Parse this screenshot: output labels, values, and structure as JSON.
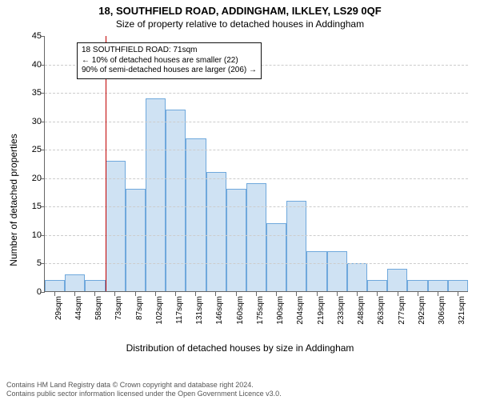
{
  "title_main": "18, SOUTHFIELD ROAD, ADDINGHAM, ILKLEY, LS29 0QF",
  "title_sub": "Size of property relative to detached houses in Addingham",
  "ylabel": "Number of detached properties",
  "xlabel": "Distribution of detached houses by size in Addingham",
  "copyright_line1": "Contains HM Land Registry data © Crown copyright and database right 2024.",
  "copyright_line2": "Contains public sector information licensed under the Open Government Licence v3.0.",
  "chart": {
    "type": "bar",
    "ylim": [
      0,
      45
    ],
    "ytick_step": 5,
    "bar_fill": "#cfe2f3",
    "bar_stroke": "#6fa8dc",
    "grid_color": "#cccccc",
    "axis_color": "#666666",
    "background_color": "#ffffff",
    "categories": [
      "29sqm",
      "44sqm",
      "58sqm",
      "73sqm",
      "87sqm",
      "102sqm",
      "117sqm",
      "131sqm",
      "146sqm",
      "160sqm",
      "175sqm",
      "190sqm",
      "204sqm",
      "219sqm",
      "233sqm",
      "248sqm",
      "263sqm",
      "277sqm",
      "292sqm",
      "306sqm",
      "321sqm"
    ],
    "values": [
      2,
      3,
      2,
      23,
      18,
      34,
      32,
      27,
      21,
      18,
      19,
      12,
      16,
      7,
      7,
      5,
      2,
      4,
      2,
      2,
      2
    ],
    "reference_line_index": 3,
    "reference_line_color": "#c00000",
    "callout": {
      "line1": "18 SOUTHFIELD ROAD: 71sqm",
      "line2": "← 10% of detached houses are smaller (22)",
      "line3": "90% of semi-detached houses are larger (206) →"
    },
    "title_fontsize": 13,
    "label_fontsize": 12,
    "tick_fontsize": 10
  }
}
